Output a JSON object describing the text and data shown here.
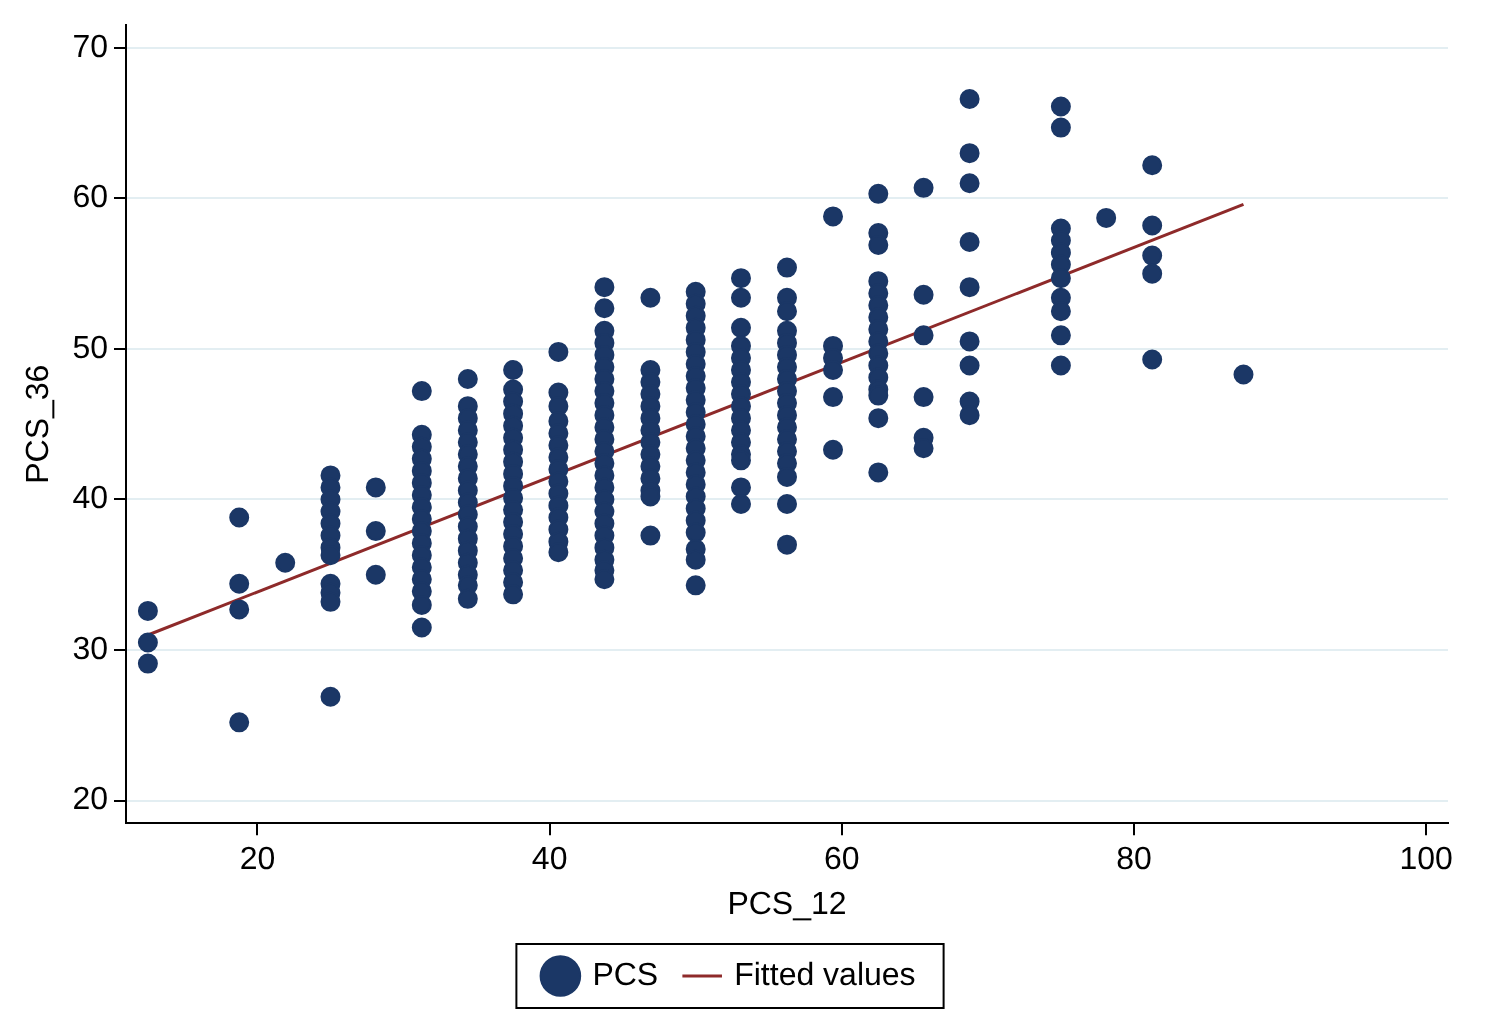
{
  "chart_data": {
    "type": "scatter",
    "xlabel": "PCS_12",
    "ylabel": "PCS_36",
    "xlim": [
      11,
      101.5
    ],
    "ylim": [
      18.5,
      71.5
    ],
    "xticks": [
      20,
      40,
      60,
      80,
      100
    ],
    "yticks": [
      20,
      30,
      40,
      50,
      60,
      70
    ],
    "grid": "y",
    "legend": "bottom",
    "marker": "circle",
    "series": [
      {
        "name": "PCS",
        "color": "#1b3766",
        "x": [
          12.5,
          12.5,
          12.5,
          18.75,
          18.75,
          18.75,
          18.75,
          21.9,
          25,
          25,
          25,
          25,
          25,
          25,
          25,
          25,
          25,
          25,
          25,
          25,
          28.1,
          28.1,
          28.1,
          31.25,
          31.25,
          31.25,
          31.25,
          31.25,
          31.25,
          31.25,
          31.25,
          31.25,
          31.25,
          31.25,
          31.25,
          31.25,
          31.25,
          31.25,
          31.25,
          31.25,
          34.4,
          34.4,
          34.4,
          34.4,
          34.4,
          34.4,
          34.4,
          34.4,
          34.4,
          34.4,
          34.4,
          34.4,
          34.4,
          34.4,
          34.4,
          34.4,
          34.4,
          34.4,
          37.5,
          37.5,
          37.5,
          37.5,
          37.5,
          37.5,
          37.5,
          37.5,
          37.5,
          37.5,
          37.5,
          37.5,
          37.5,
          37.5,
          37.5,
          37.5,
          37.5,
          37.5,
          37.5,
          40.6,
          40.6,
          40.6,
          40.6,
          40.6,
          40.6,
          40.6,
          40.6,
          40.6,
          40.6,
          40.6,
          40.6,
          40.6,
          40.6,
          40.6,
          43.75,
          43.75,
          43.75,
          43.75,
          43.75,
          43.75,
          43.75,
          43.75,
          43.75,
          43.75,
          43.75,
          43.75,
          43.75,
          43.75,
          43.75,
          43.75,
          43.75,
          43.75,
          43.75,
          43.75,
          43.75,
          43.75,
          43.75,
          43.75,
          46.9,
          46.9,
          46.9,
          46.9,
          46.9,
          46.9,
          46.9,
          46.9,
          46.9,
          46.9,
          46.9,
          46.9,
          46.9,
          46.9,
          50,
          50,
          50,
          50,
          50,
          50,
          50,
          50,
          50,
          50,
          50,
          50,
          50,
          50,
          50,
          50,
          50,
          50,
          50,
          50,
          50,
          50,
          50,
          50,
          53.1,
          53.1,
          53.1,
          53.1,
          53.1,
          53.1,
          53.1,
          53.1,
          53.1,
          53.1,
          53.1,
          53.1,
          53.1,
          53.1,
          53.1,
          53.1,
          56.25,
          56.25,
          56.25,
          56.25,
          56.25,
          56.25,
          56.25,
          56.25,
          56.25,
          56.25,
          56.25,
          56.25,
          56.25,
          56.25,
          56.25,
          56.25,
          56.25,
          56.25,
          59.4,
          59.4,
          59.4,
          59.4,
          59.4,
          59.4,
          62.5,
          62.5,
          62.5,
          62.5,
          62.5,
          62.5,
          62.5,
          62.5,
          62.5,
          62.5,
          62.5,
          62.5,
          62.5,
          62.5,
          62.5,
          62.5,
          65.6,
          65.6,
          65.6,
          65.6,
          65.6,
          65.6,
          68.75,
          68.75,
          68.75,
          68.75,
          68.75,
          68.75,
          68.75,
          68.75,
          68.75,
          75,
          75,
          75,
          75,
          75,
          75,
          75,
          75,
          75,
          75,
          75,
          78.1,
          81.25,
          81.25,
          81.25,
          81.25,
          81.25,
          87.5
        ],
        "values": [
          32.6,
          30.5,
          29.1,
          38.8,
          34.4,
          32.7,
          25.2,
          35.8,
          41.6,
          40.8,
          40,
          39.2,
          38.4,
          37.6,
          36.8,
          36.3,
          34.4,
          33.8,
          33.2,
          26.9,
          40.8,
          37.9,
          35,
          47.2,
          44.3,
          43.5,
          42.7,
          41.9,
          41.1,
          40.3,
          39.5,
          38.7,
          37.9,
          37.1,
          36.3,
          35.5,
          34.7,
          33.9,
          33,
          31.5,
          48,
          46.2,
          45.4,
          44.6,
          43.8,
          43,
          42.2,
          41.4,
          40.6,
          39.8,
          39,
          38.2,
          37.4,
          36.6,
          35.8,
          35,
          34.3,
          33.4,
          48.6,
          47.3,
          46.5,
          45.7,
          44.9,
          44.1,
          43.3,
          42.5,
          41.7,
          40.9,
          40.1,
          39.3,
          38.5,
          37.7,
          36.9,
          36.1,
          35.3,
          34.5,
          33.7,
          49.8,
          47.1,
          46.2,
          45.2,
          44.4,
          43.6,
          42.8,
          42,
          41.2,
          40.4,
          39.6,
          38.8,
          38,
          37.2,
          36.5,
          54.1,
          52.7,
          51.2,
          50.4,
          49.6,
          48.8,
          48,
          47.2,
          46.4,
          45.6,
          44.8,
          44,
          43.2,
          42.4,
          41.6,
          40.8,
          40,
          39.2,
          38.4,
          37.6,
          36.8,
          36,
          35.3,
          34.7,
          53.4,
          48.6,
          47.8,
          47,
          46.2,
          45.4,
          44.6,
          43.8,
          43,
          42.2,
          41.4,
          40.6,
          40.2,
          37.6,
          53.8,
          53,
          52.2,
          51.4,
          50.6,
          49.8,
          49,
          48.2,
          47.4,
          46.6,
          45.8,
          45,
          44.2,
          43.4,
          42.6,
          41.8,
          41,
          40.2,
          39.4,
          38.6,
          37.8,
          36.7,
          36,
          34.3,
          54.7,
          53.4,
          51.4,
          50.2,
          49.4,
          48.6,
          47.8,
          47,
          46.2,
          45.4,
          44.6,
          43.8,
          43,
          42.6,
          40.8,
          39.7,
          55.4,
          53.4,
          52.5,
          51.2,
          50.4,
          49.6,
          48.8,
          48,
          47.2,
          46.4,
          45.6,
          44.8,
          44,
          43.2,
          42.4,
          41.5,
          39.7,
          37,
          58.8,
          50.2,
          49.4,
          48.6,
          46.8,
          43.3,
          60.3,
          57.7,
          56.9,
          54.5,
          53.7,
          52.9,
          52.1,
          51.3,
          50.5,
          49.7,
          48.9,
          48.1,
          47.3,
          46.9,
          45.4,
          41.8,
          60.7,
          53.6,
          50.9,
          46.8,
          44.1,
          43.4,
          66.6,
          63,
          61,
          57.1,
          54.1,
          50.5,
          48.9,
          46.5,
          45.6,
          66.1,
          64.7,
          58,
          57.2,
          56.4,
          55.6,
          54.7,
          53.4,
          52.5,
          50.9,
          48.9,
          58.7,
          62.2,
          58.2,
          56.2,
          55,
          49.3,
          48.3
        ]
      },
      {
        "name": "Fitted values",
        "type": "line",
        "color": "#8e2a2a",
        "marker": "none",
        "line_style": "solid",
        "x": [
          12.5,
          87.5
        ],
        "values": [
          31,
          59.6
        ]
      }
    ]
  }
}
